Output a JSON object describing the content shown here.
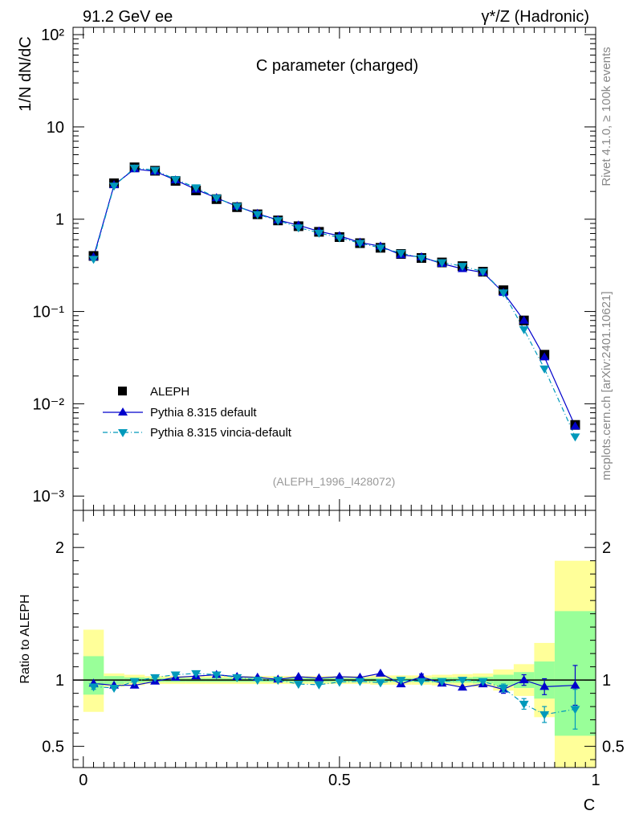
{
  "header": {
    "left": "91.2 GeV ee",
    "right": "γ*/Z (Hadronic)"
  },
  "side": {
    "rivet": "Rivet 4.1.0, ≥ 100k events",
    "mcplots": "mcplots.cern.ch [arXiv:2401.10621]"
  },
  "colors": {
    "data": "#000000",
    "default": "#0000cc",
    "vincia": "#0099bb",
    "band_inner": "#99ff99",
    "band_outer": "#ffff99"
  },
  "chart_data": [
    {
      "type": "line",
      "scale": "log",
      "title": "C parameter (charged)",
      "ylabel": "1/N  dN/dC",
      "ylim": [
        0.0007,
        120
      ],
      "xlim": [
        -0.02,
        1.0
      ],
      "yticklabels": [
        "10²",
        "10",
        "1",
        "10⁻¹",
        "10⁻²",
        "10⁻³"
      ],
      "ytick_values": [
        100,
        10,
        1,
        0.1,
        0.01,
        0.001
      ],
      "analysis_id": "(ALEPH_1996_I428072)",
      "x": [
        0.02,
        0.06,
        0.1,
        0.14,
        0.18,
        0.22,
        0.26,
        0.3,
        0.34,
        0.38,
        0.42,
        0.46,
        0.5,
        0.54,
        0.58,
        0.62,
        0.66,
        0.7,
        0.74,
        0.78,
        0.82,
        0.86,
        0.9,
        0.96
      ],
      "series": [
        {
          "name": "ALEPH",
          "style": "data",
          "values": [
            0.4,
            2.45,
            3.65,
            3.35,
            2.6,
            2.05,
            1.65,
            1.35,
            1.13,
            0.97,
            0.84,
            0.73,
            0.64,
            0.55,
            0.49,
            0.42,
            0.38,
            0.34,
            0.31,
            0.27,
            0.17,
            0.08,
            0.034,
            0.0059
          ]
        },
        {
          "name": "Pythia 8.315 default",
          "style": "default",
          "values": [
            0.39,
            2.35,
            3.5,
            3.3,
            2.65,
            2.1,
            1.7,
            1.38,
            1.15,
            0.98,
            0.86,
            0.74,
            0.66,
            0.56,
            0.51,
            0.41,
            0.39,
            0.33,
            0.29,
            0.265,
            0.16,
            0.08,
            0.032,
            0.0057
          ]
        },
        {
          "name": "Pythia 8.315 vincia-default",
          "style": "vincia",
          "values": [
            0.37,
            2.3,
            3.6,
            3.4,
            2.7,
            2.2,
            1.7,
            1.38,
            1.13,
            0.97,
            0.81,
            0.71,
            0.63,
            0.55,
            0.49,
            0.43,
            0.38,
            0.34,
            0.31,
            0.27,
            0.16,
            0.064,
            0.024,
            0.0044
          ]
        }
      ]
    },
    {
      "type": "line",
      "ylabel": "Ratio to ALEPH",
      "xlabel": "C",
      "ylim": [
        0.34,
        2.28
      ],
      "xlim": [
        -0.02,
        1.0
      ],
      "xticklabels": [
        "0",
        "0.5",
        "1"
      ],
      "xtick_values": [
        0,
        0.5,
        1
      ],
      "yticklabels": [
        "0.5",
        "1",
        "2"
      ],
      "ytick_values": [
        0.5,
        1,
        2
      ],
      "bands": [
        {
          "lo": 0.0,
          "hi": 0.04,
          "inner": [
            0.89,
            1.18
          ],
          "outer": [
            0.76,
            1.38
          ]
        },
        {
          "lo": 0.04,
          "hi": 0.08,
          "inner": [
            0.97,
            1.03
          ],
          "outer": [
            0.95,
            1.05
          ]
        },
        {
          "lo": 0.08,
          "hi": 0.12,
          "inner": [
            0.98,
            1.02
          ],
          "outer": [
            0.96,
            1.04
          ]
        },
        {
          "lo": 0.12,
          "hi": 0.16,
          "inner": [
            0.985,
            1.015
          ],
          "outer": [
            0.97,
            1.03
          ]
        },
        {
          "lo": 0.16,
          "hi": 0.2,
          "inner": [
            0.985,
            1.015
          ],
          "outer": [
            0.97,
            1.03
          ]
        },
        {
          "lo": 0.2,
          "hi": 0.24,
          "inner": [
            0.985,
            1.015
          ],
          "outer": [
            0.97,
            1.03
          ]
        },
        {
          "lo": 0.24,
          "hi": 0.28,
          "inner": [
            0.985,
            1.015
          ],
          "outer": [
            0.97,
            1.03
          ]
        },
        {
          "lo": 0.28,
          "hi": 0.32,
          "inner": [
            0.985,
            1.015
          ],
          "outer": [
            0.97,
            1.03
          ]
        },
        {
          "lo": 0.32,
          "hi": 0.36,
          "inner": [
            0.985,
            1.015
          ],
          "outer": [
            0.97,
            1.03
          ]
        },
        {
          "lo": 0.36,
          "hi": 0.4,
          "inner": [
            0.985,
            1.015
          ],
          "outer": [
            0.97,
            1.03
          ]
        },
        {
          "lo": 0.4,
          "hi": 0.44,
          "inner": [
            0.985,
            1.015
          ],
          "outer": [
            0.97,
            1.03
          ]
        },
        {
          "lo": 0.44,
          "hi": 0.48,
          "inner": [
            0.985,
            1.015
          ],
          "outer": [
            0.97,
            1.03
          ]
        },
        {
          "lo": 0.48,
          "hi": 0.52,
          "inner": [
            0.985,
            1.015
          ],
          "outer": [
            0.97,
            1.03
          ]
        },
        {
          "lo": 0.52,
          "hi": 0.56,
          "inner": [
            0.985,
            1.015
          ],
          "outer": [
            0.97,
            1.03
          ]
        },
        {
          "lo": 0.56,
          "hi": 0.6,
          "inner": [
            0.985,
            1.015
          ],
          "outer": [
            0.965,
            1.035
          ]
        },
        {
          "lo": 0.6,
          "hi": 0.64,
          "inner": [
            0.985,
            1.015
          ],
          "outer": [
            0.965,
            1.035
          ]
        },
        {
          "lo": 0.64,
          "hi": 0.68,
          "inner": [
            0.985,
            1.015
          ],
          "outer": [
            0.965,
            1.035
          ]
        },
        {
          "lo": 0.68,
          "hi": 0.72,
          "inner": [
            0.98,
            1.02
          ],
          "outer": [
            0.96,
            1.04
          ]
        },
        {
          "lo": 0.72,
          "hi": 0.76,
          "inner": [
            0.98,
            1.02
          ],
          "outer": [
            0.955,
            1.045
          ]
        },
        {
          "lo": 0.76,
          "hi": 0.8,
          "inner": [
            0.975,
            1.025
          ],
          "outer": [
            0.95,
            1.05
          ]
        },
        {
          "lo": 0.8,
          "hi": 0.84,
          "inner": [
            0.96,
            1.04
          ],
          "outer": [
            0.92,
            1.08
          ]
        },
        {
          "lo": 0.84,
          "hi": 0.88,
          "inner": [
            0.94,
            1.06
          ],
          "outer": [
            0.88,
            1.12
          ]
        },
        {
          "lo": 0.88,
          "hi": 0.92,
          "inner": [
            0.86,
            1.14
          ],
          "outer": [
            0.72,
            1.28
          ]
        },
        {
          "lo": 0.92,
          "hi": 1.0,
          "inner": [
            0.58,
            1.52
          ],
          "outer": [
            0.34,
            1.9
          ]
        }
      ],
      "x": [
        0.02,
        0.06,
        0.1,
        0.14,
        0.18,
        0.22,
        0.26,
        0.3,
        0.34,
        0.38,
        0.42,
        0.46,
        0.5,
        0.54,
        0.58,
        0.62,
        0.66,
        0.7,
        0.74,
        0.78,
        0.82,
        0.86,
        0.9,
        0.96
      ],
      "series": [
        {
          "name": "Pythia 8.315 default",
          "style": "default",
          "values": [
            0.975,
            0.96,
            0.96,
            0.99,
            1.02,
            1.03,
            1.04,
            1.025,
            1.02,
            1.005,
            1.025,
            1.015,
            1.025,
            1.02,
            1.05,
            0.97,
            1.025,
            0.975,
            0.945,
            0.97,
            0.93,
            1.0,
            0.95,
            0.96
          ],
          "errors": [
            0,
            0,
            0,
            0,
            0,
            0,
            0,
            0,
            0,
            0,
            0,
            0,
            0,
            0,
            0,
            0,
            0.02,
            0,
            0,
            0,
            0.03,
            0.04,
            0.06,
            0.15
          ]
        },
        {
          "name": "Pythia 8.315 vincia-default",
          "style": "vincia",
          "values": [
            0.95,
            0.94,
            0.99,
            1.02,
            1.04,
            1.05,
            1.04,
            1.02,
            1.0,
            1.0,
            0.97,
            0.965,
            0.985,
            0.99,
            0.98,
            1.0,
            0.99,
            0.99,
            1.0,
            0.99,
            0.94,
            0.82,
            0.74,
            0.78
          ],
          "errors": [
            0.02,
            0,
            0,
            0,
            0,
            0,
            0,
            0,
            0,
            0,
            0,
            0,
            0,
            0,
            0,
            0,
            0,
            0,
            0,
            0,
            0.03,
            0.04,
            0.06,
            0.15
          ]
        }
      ]
    }
  ]
}
